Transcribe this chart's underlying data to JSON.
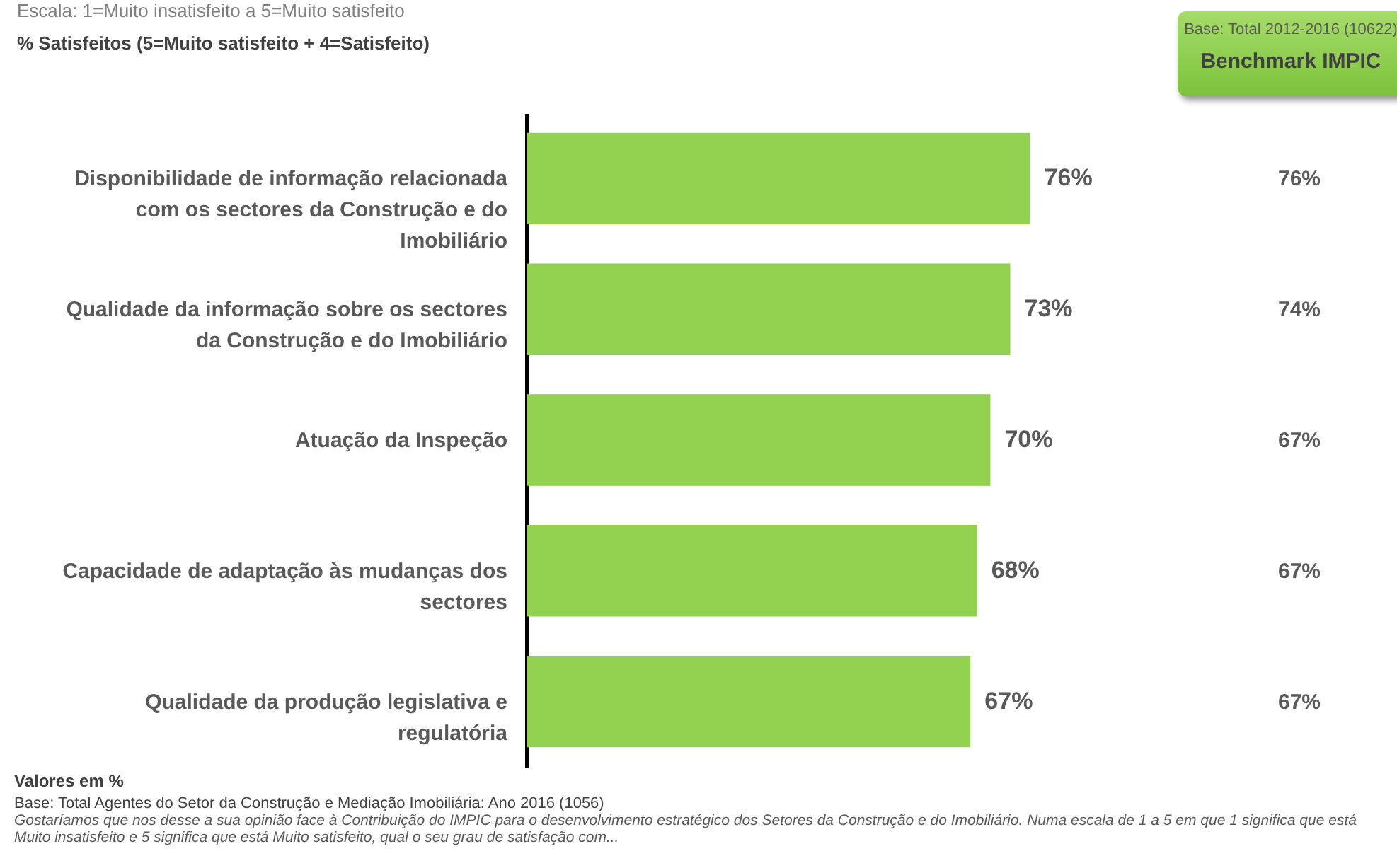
{
  "chart_data": {
    "type": "bar",
    "orientation": "horizontal",
    "subtitle": "Escala: 1=Muito insatisfeito a 5=Muito satisfeito",
    "title": "% Satisfeitos (5=Muito satisfeito + 4=Satisfeito)",
    "categories": [
      "Disponibilidade de informação relacionada com os sectores da Construção e do Imobiliário",
      "Qualidade da informação sobre os sectores da Construção e do Imobiliário",
      "Atuação da Inspeção",
      "Capacidade de adaptação às mudanças dos sectores",
      "Qualidade da produção legislativa e regulatória"
    ],
    "series": [
      {
        "color": "#92d050",
        "values": [
          76,
          73,
          70,
          68,
          67
        ],
        "value_labels": [
          "76%",
          "73%",
          "70%",
          "68%",
          "67%"
        ]
      }
    ],
    "tick_labels": "y",
    "annotations": [
      "Base: Total 2012-2016 (10622)",
      "Benchmark IMPIC",
      "76%",
      "74%",
      "67%",
      "67%",
      "67%",
      "Valores em %",
      "Base: Total Agentes do Setor da Construção e Mediação Imobiliária: Ano 2016 (1056)",
      "Gostaríamos que nos desse a sua opinião face à Contribuição do IMPIC para o desenvolvimento estratégico dos Setores da Construção e do Imobiliário.  Numa escala de 1 a 5 em que 1 significa que está Muito insatisfeito e 5 significa que está Muito satisfeito, qual o seu grau de satisfação com..."
    ]
  }
}
